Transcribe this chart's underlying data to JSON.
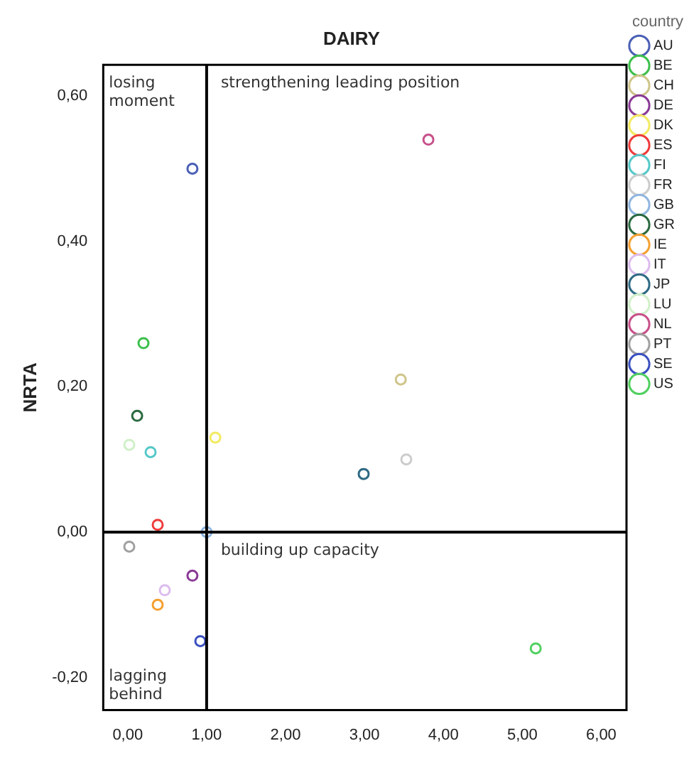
{
  "chart_data": {
    "type": "scatter",
    "title": "DAIRY",
    "ylabel": "NRTA",
    "legend_title": "country",
    "legend": "right",
    "marker": "circle",
    "grid": false,
    "xlim": [
      -0.31,
      6.32
    ],
    "ylim": [
      -0.245,
      0.643
    ],
    "xticks": [
      {
        "value": 0,
        "label": "0,00"
      },
      {
        "value": 1,
        "label": "1,00"
      },
      {
        "value": 2,
        "label": "2,00"
      },
      {
        "value": 3,
        "label": "3,00"
      },
      {
        "value": 4,
        "label": "4,00"
      },
      {
        "value": 5,
        "label": "5,00"
      },
      {
        "value": 6,
        "label": "6,00"
      }
    ],
    "yticks": [
      {
        "value": -0.2,
        "label": "-0,20"
      },
      {
        "value": 0,
        "label": "0,00"
      },
      {
        "value": 0.2,
        "label": "0,20"
      },
      {
        "value": 0.4,
        "label": "0,40"
      },
      {
        "value": 0.6,
        "label": "0,60"
      }
    ],
    "ref_lines": [
      {
        "axis": "x",
        "value": 1,
        "color": "#000000"
      },
      {
        "axis": "y",
        "value": 0,
        "color": "#000000"
      }
    ],
    "annotations": [
      "losing\nmoment",
      "strengthening leading position",
      "building up capacity",
      "lagging\nbehind"
    ],
    "series": [
      {
        "name": "AU",
        "color": "#4a5fb5",
        "x": [
          0.82
        ],
        "values": [
          0.5
        ]
      },
      {
        "name": "BE",
        "color": "#3cbf4a",
        "x": [
          0.2
        ],
        "values": [
          0.26
        ]
      },
      {
        "name": "CH",
        "color": "#cfc58a",
        "x": [
          3.46
        ],
        "values": [
          0.21
        ]
      },
      {
        "name": "DE",
        "color": "#8a3a96",
        "x": [
          0.82
        ],
        "values": [
          -0.06
        ]
      },
      {
        "name": "DK",
        "color": "#f2ea60",
        "x": [
          1.11
        ],
        "values": [
          0.13
        ]
      },
      {
        "name": "ES",
        "color": "#ee3b3b",
        "x": [
          0.38
        ],
        "values": [
          0.01
        ]
      },
      {
        "name": "FI",
        "color": "#55c8c8",
        "x": [
          0.29
        ],
        "values": [
          0.11
        ]
      },
      {
        "name": "FR",
        "color": "#cccccc",
        "x": [
          3.53
        ],
        "values": [
          0.1
        ]
      },
      {
        "name": "GB",
        "color": "#8fb5e0",
        "x": [
          1.0
        ],
        "values": [
          0.0
        ]
      },
      {
        "name": "GR",
        "color": "#2a6a40",
        "x": [
          0.12
        ],
        "values": [
          0.16
        ]
      },
      {
        "name": "IE",
        "color": "#f5a030",
        "x": [
          0.38
        ],
        "values": [
          -0.1
        ]
      },
      {
        "name": "IT",
        "color": "#dcbcee",
        "x": [
          0.47
        ],
        "values": [
          -0.08
        ]
      },
      {
        "name": "JP",
        "color": "#2e6a84",
        "x": [
          2.99
        ],
        "values": [
          0.08
        ]
      },
      {
        "name": "LU",
        "color": "#d0f0c8",
        "x": [
          0.02
        ],
        "values": [
          0.12
        ]
      },
      {
        "name": "NL",
        "color": "#c8508a",
        "x": [
          3.81
        ],
        "values": [
          0.54
        ]
      },
      {
        "name": "PT",
        "color": "#a0a0a0",
        "x": [
          0.02
        ],
        "values": [
          -0.02
        ]
      },
      {
        "name": "SE",
        "color": "#3a50c0",
        "x": [
          0.92
        ],
        "values": [
          -0.15
        ]
      },
      {
        "name": "US",
        "color": "#50d060",
        "x": [
          5.17
        ],
        "values": [
          -0.16
        ]
      }
    ]
  }
}
